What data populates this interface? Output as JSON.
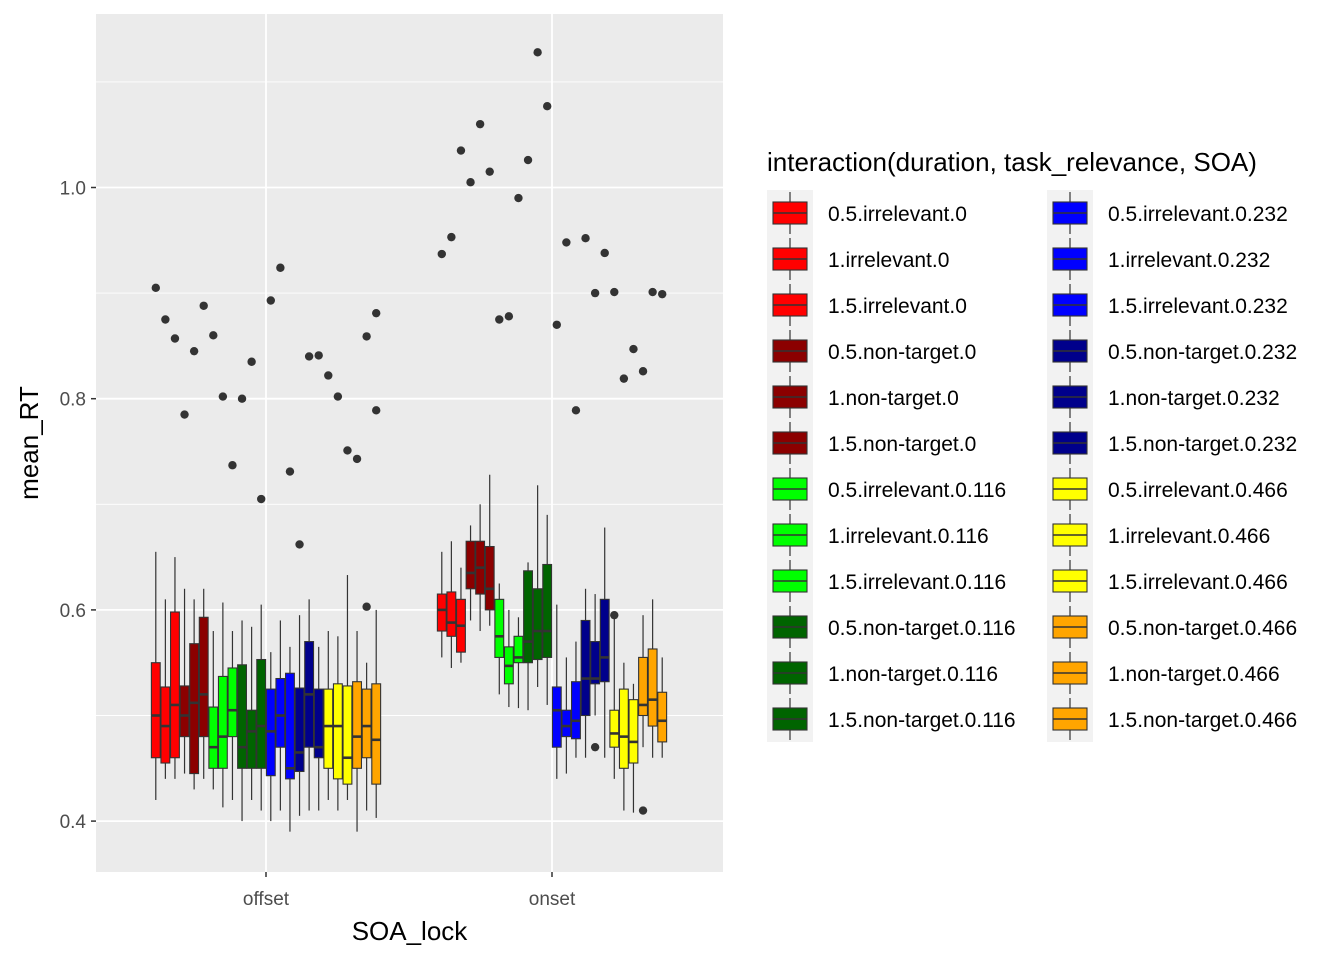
{
  "chart_data": {
    "type": "boxplot",
    "xlabel": "SOA_lock",
    "ylabel": "mean_RT",
    "categories": [
      "offset",
      "onset"
    ],
    "y_ticks": [
      0.4,
      0.6,
      0.8,
      1.0
    ],
    "y_tick_labels": [
      "0.4",
      "0.6",
      "0.8",
      "1.0"
    ],
    "ylim": [
      0.35,
      1.16
    ],
    "grid": true,
    "legend": {
      "title": "interaction(duration, task_relevance, SOA)",
      "placement": "right",
      "columns": 2
    },
    "series": [
      {
        "name": "0.5.irrelevant.0",
        "color": "#FF0000",
        "boxes": [
          {
            "category": "offset",
            "stats": [
              0.42,
              0.46,
              0.5,
              0.55,
              0.655
            ],
            "outliers": [
              0.905
            ]
          },
          {
            "category": "onset",
            "stats": [
              0.555,
              0.58,
              0.6,
              0.615,
              0.655
            ],
            "outliers": [
              0.937
            ]
          }
        ]
      },
      {
        "name": "1.irrelevant.0",
        "color": "#FF0000",
        "boxes": [
          {
            "category": "offset",
            "stats": [
              0.44,
              0.455,
              0.49,
              0.527,
              0.61
            ],
            "outliers": [
              0.875
            ]
          },
          {
            "category": "onset",
            "stats": [
              0.545,
              0.575,
              0.588,
              0.617,
              0.665
            ],
            "outliers": [
              0.953
            ]
          }
        ]
      },
      {
        "name": "1.5.irrelevant.0",
        "color": "#FF0000",
        "boxes": [
          {
            "category": "offset",
            "stats": [
              0.44,
              0.46,
              0.51,
              0.598,
              0.65
            ],
            "outliers": [
              0.857
            ]
          },
          {
            "category": "onset",
            "stats": [
              0.55,
              0.56,
              0.585,
              0.61,
              0.64
            ],
            "outliers": [
              1.035
            ]
          }
        ]
      },
      {
        "name": "0.5.non-target.0",
        "color": "#8B0000",
        "boxes": [
          {
            "category": "offset",
            "stats": [
              0.445,
              0.48,
              0.5,
              0.528,
              0.62
            ],
            "outliers": [
              0.785
            ]
          },
          {
            "category": "onset",
            "stats": [
              0.59,
              0.62,
              0.635,
              0.665,
              0.68
            ],
            "outliers": [
              1.005
            ]
          }
        ]
      },
      {
        "name": "1.non-target.0",
        "color": "#8B0000",
        "boxes": [
          {
            "category": "offset",
            "stats": [
              0.43,
              0.445,
              0.512,
              0.568,
              0.61
            ],
            "outliers": [
              0.845
            ]
          },
          {
            "category": "onset",
            "stats": [
              0.58,
              0.615,
              0.64,
              0.665,
              0.7
            ],
            "outliers": [
              1.06
            ]
          }
        ]
      },
      {
        "name": "1.5.non-target.0",
        "color": "#8B0000",
        "boxes": [
          {
            "category": "offset",
            "stats": [
              0.44,
              0.48,
              0.52,
              0.593,
              0.62
            ],
            "outliers": [
              0.888
            ]
          },
          {
            "category": "onset",
            "stats": [
              0.585,
              0.6,
              0.62,
              0.66,
              0.728
            ],
            "outliers": [
              1.015
            ]
          }
        ]
      },
      {
        "name": "0.5.irrelevant.0.116",
        "color": "#00FF00",
        "boxes": [
          {
            "category": "offset",
            "stats": [
              0.43,
              0.45,
              0.47,
              0.508,
              0.58
            ],
            "outliers": [
              0.86
            ]
          },
          {
            "category": "onset",
            "stats": [
              0.52,
              0.555,
              0.575,
              0.61,
              0.625
            ],
            "outliers": [
              0.875
            ]
          }
        ]
      },
      {
        "name": "1.irrelevant.0.116",
        "color": "#00FF00",
        "boxes": [
          {
            "category": "offset",
            "stats": [
              0.413,
              0.45,
              0.48,
              0.537,
              0.607
            ],
            "outliers": [
              0.802
            ]
          },
          {
            "category": "onset",
            "stats": [
              0.508,
              0.53,
              0.547,
              0.565,
              0.6
            ],
            "outliers": [
              0.878
            ]
          }
        ]
      },
      {
        "name": "1.5.irrelevant.0.116",
        "color": "#00FF00",
        "boxes": [
          {
            "category": "offset",
            "stats": [
              0.42,
              0.48,
              0.505,
              0.545,
              0.58
            ],
            "outliers": [
              0.737
            ]
          },
          {
            "category": "onset",
            "stats": [
              0.507,
              0.55,
              0.555,
              0.575,
              0.593
            ],
            "outliers": [
              0.99
            ]
          }
        ]
      },
      {
        "name": "0.5.non-target.0.116",
        "color": "#006400",
        "boxes": [
          {
            "category": "offset",
            "stats": [
              0.4,
              0.45,
              0.47,
              0.548,
              0.59
            ],
            "outliers": [
              0.8
            ]
          },
          {
            "category": "onset",
            "stats": [
              0.505,
              0.55,
              0.57,
              0.637,
              0.645
            ],
            "outliers": [
              1.026
            ]
          }
        ]
      },
      {
        "name": "1.non-target.0.116",
        "color": "#006400",
        "boxes": [
          {
            "category": "offset",
            "stats": [
              0.42,
              0.45,
              0.485,
              0.505,
              0.584
            ],
            "outliers": [
              0.835
            ]
          },
          {
            "category": "onset",
            "stats": [
              0.527,
              0.553,
              0.58,
              0.62,
              0.718
            ],
            "outliers": [
              1.128
            ]
          }
        ]
      },
      {
        "name": "1.5.non-target.0.116",
        "color": "#006400",
        "boxes": [
          {
            "category": "offset",
            "stats": [
              0.41,
              0.45,
              0.49,
              0.553,
              0.605
            ],
            "outliers": [
              0.705
            ]
          },
          {
            "category": "onset",
            "stats": [
              0.51,
              0.555,
              0.58,
              0.643,
              0.69
            ],
            "outliers": [
              1.077
            ]
          }
        ]
      },
      {
        "name": "0.5.irrelevant.0.232",
        "color": "#0000FF",
        "boxes": [
          {
            "category": "offset",
            "stats": [
              0.4,
              0.443,
              0.485,
              0.525,
              0.56
            ],
            "outliers": [
              0.893
            ]
          },
          {
            "category": "onset",
            "stats": [
              0.44,
              0.47,
              0.505,
              0.527,
              0.605
            ],
            "outliers": [
              0.87
            ]
          }
        ]
      },
      {
        "name": "1.irrelevant.0.232",
        "color": "#0000FF",
        "boxes": [
          {
            "category": "offset",
            "stats": [
              0.41,
              0.47,
              0.5,
              0.535,
              0.59
            ],
            "outliers": [
              0.924
            ]
          },
          {
            "category": "onset",
            "stats": [
              0.445,
              0.48,
              0.49,
              0.505,
              0.555
            ],
            "outliers": [
              0.948
            ]
          }
        ]
      },
      {
        "name": "1.5.irrelevant.0.232",
        "color": "#0000FF",
        "boxes": [
          {
            "category": "offset",
            "stats": [
              0.39,
              0.44,
              0.45,
              0.54,
              0.565
            ],
            "outliers": [
              0.731
            ]
          },
          {
            "category": "onset",
            "stats": [
              0.46,
              0.478,
              0.495,
              0.532,
              0.57
            ],
            "outliers": [
              0.789
            ]
          }
        ]
      },
      {
        "name": "0.5.non-target.0.232",
        "color": "#00008B",
        "boxes": [
          {
            "category": "offset",
            "stats": [
              0.405,
              0.447,
              0.465,
              0.526,
              0.595
            ],
            "outliers": [
              0.662
            ]
          },
          {
            "category": "onset",
            "stats": [
              0.46,
              0.5,
              0.535,
              0.59,
              0.62
            ],
            "outliers": [
              0.952
            ]
          }
        ]
      },
      {
        "name": "1.non-target.0.232",
        "color": "#00008B",
        "boxes": [
          {
            "category": "offset",
            "stats": [
              0.41,
              0.47,
              0.52,
              0.57,
              0.61
            ],
            "outliers": [
              0.84
            ]
          },
          {
            "category": "onset",
            "stats": [
              0.5,
              0.53,
              0.535,
              0.57,
              0.615
            ],
            "outliers": [
              0.9,
              0.47
            ]
          }
        ]
      },
      {
        "name": "1.5.non-target.0.232",
        "color": "#00008B",
        "boxes": [
          {
            "category": "offset",
            "stats": [
              0.41,
              0.46,
              0.47,
              0.525,
              0.565
            ],
            "outliers": [
              0.841
            ]
          },
          {
            "category": "onset",
            "stats": [
              0.46,
              0.532,
              0.555,
              0.61,
              0.678
            ],
            "outliers": [
              0.938
            ]
          }
        ]
      },
      {
        "name": "0.5.irrelevant.0.466",
        "color": "#FFFF00",
        "boxes": [
          {
            "category": "offset",
            "stats": [
              0.42,
              0.45,
              0.49,
              0.525,
              0.58
            ],
            "outliers": [
              0.822
            ]
          },
          {
            "category": "onset",
            "stats": [
              0.44,
              0.47,
              0.483,
              0.505,
              0.595
            ],
            "outliers": [
              0.901,
              0.595
            ]
          }
        ]
      },
      {
        "name": "1.irrelevant.0.466",
        "color": "#FFFF00",
        "boxes": [
          {
            "category": "offset",
            "stats": [
              0.41,
              0.44,
              0.49,
              0.53,
              0.575
            ],
            "outliers": [
              0.802
            ]
          },
          {
            "category": "onset",
            "stats": [
              0.41,
              0.45,
              0.48,
              0.525,
              0.55
            ],
            "outliers": [
              0.819
            ]
          }
        ]
      },
      {
        "name": "1.5.irrelevant.0.466",
        "color": "#FFFF00",
        "boxes": [
          {
            "category": "offset",
            "stats": [
              0.42,
              0.435,
              0.46,
              0.528,
              0.633
            ],
            "outliers": [
              0.751
            ]
          },
          {
            "category": "onset",
            "stats": [
              0.408,
              0.455,
              0.475,
              0.515,
              0.53
            ],
            "outliers": [
              0.847
            ]
          }
        ]
      },
      {
        "name": "0.5.non-target.0.466",
        "color": "#FFA500",
        "boxes": [
          {
            "category": "offset",
            "stats": [
              0.39,
              0.45,
              0.48,
              0.532,
              0.58
            ],
            "outliers": [
              0.743
            ]
          },
          {
            "category": "onset",
            "stats": [
              0.47,
              0.5,
              0.51,
              0.555,
              0.595
            ],
            "outliers": [
              0.826,
              0.41
            ]
          }
        ]
      },
      {
        "name": "1.non-target.0.466",
        "color": "#FFA500",
        "boxes": [
          {
            "category": "offset",
            "stats": [
              0.41,
              0.46,
              0.49,
              0.525,
              0.55
            ],
            "outliers": [
              0.859,
              0.603
            ]
          },
          {
            "category": "onset",
            "stats": [
              0.46,
              0.49,
              0.515,
              0.563,
              0.61
            ],
            "outliers": [
              0.901
            ]
          }
        ]
      },
      {
        "name": "1.5.non-target.0.466",
        "color": "#FFA500",
        "boxes": [
          {
            "category": "offset",
            "stats": [
              0.403,
              0.435,
              0.477,
              0.53,
              0.6
            ],
            "outliers": [
              0.881,
              0.789
            ]
          },
          {
            "category": "onset",
            "stats": [
              0.46,
              0.475,
              0.495,
              0.522,
              0.555
            ],
            "outliers": [
              0.899
            ]
          }
        ]
      }
    ]
  }
}
